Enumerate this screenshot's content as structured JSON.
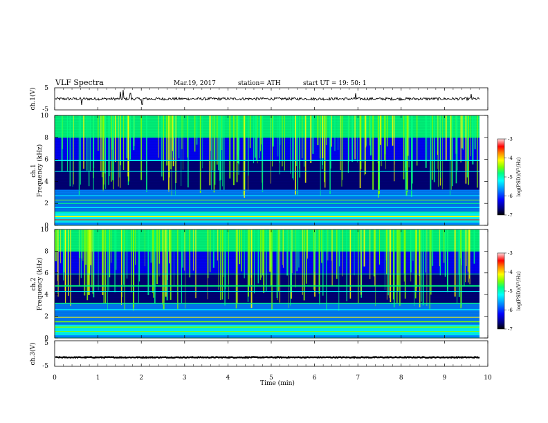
{
  "header": {
    "title": "VLF  Spectra",
    "date": "Mar.19, 2017",
    "station": "station= ATH",
    "start": "start  UT  =    19: 50: 1"
  },
  "chart_data": {
    "type": "heatmap",
    "xlabel": "Time  (min)",
    "xlim": [
      0,
      10
    ],
    "x_ticks": [
      "0",
      "1",
      "2",
      "3",
      "4",
      "5",
      "6",
      "7",
      "8",
      "9",
      "10"
    ],
    "panels": [
      {
        "name": "ch.1 waveform",
        "type": "line",
        "ylabel": "ch.1(V)",
        "ylim": [
          -5,
          5
        ],
        "y_ticks": [
          "5",
          "-5"
        ],
        "baseline": 0,
        "noise_amplitude": 0.6,
        "spikes": [
          {
            "t": 1.52,
            "v": 3.2
          },
          {
            "t": 1.58,
            "v": 4.0
          },
          {
            "t": 1.75,
            "v": 2.5
          },
          {
            "t": 0.62,
            "v": -2.8
          },
          {
            "t": 2.02,
            "v": -2.6
          },
          {
            "t": 6.95,
            "v": 2.5
          },
          {
            "t": 9.62,
            "v": 2.2
          }
        ]
      },
      {
        "name": "ch.1 spectrogram",
        "type": "heatmap",
        "ylabel_line1": "ch.1",
        "ylabel_line2": "Frequency (kHz)",
        "ylim": [
          0,
          10
        ],
        "y_ticks": [
          "0",
          "2",
          "4",
          "6",
          "8",
          "10"
        ],
        "colorbar": {
          "label": "log(PSD)(V²/Hz)",
          "range": [
            -7,
            -3
          ],
          "ticks": [
            "-3",
            "-4",
            "-5",
            "-6",
            "-7"
          ]
        }
      },
      {
        "name": "ch.2 spectrogram",
        "type": "heatmap",
        "ylabel_line1": "ch.2",
        "ylabel_line2": "Frequency (kHz)",
        "ylim": [
          0,
          10
        ],
        "y_ticks": [
          "0",
          "2",
          "4",
          "6",
          "8",
          "10"
        ],
        "colorbar": {
          "label": "log(PSD)(V²/Hz)",
          "range": [
            -7,
            -3
          ],
          "ticks": [
            "-3",
            "-4",
            "-5",
            "-6",
            "-7"
          ]
        }
      },
      {
        "name": "ch.3 waveform",
        "type": "line",
        "ylabel": "ch.3(V)",
        "ylim": [
          -5,
          5
        ],
        "y_ticks": [
          "5",
          "-5"
        ],
        "baseline": -1.5,
        "noise_amplitude": 0.15
      }
    ],
    "colormap": [
      "#000000",
      "#00007a",
      "#0000ff",
      "#0080ff",
      "#00ffff",
      "#00ff80",
      "#80ff00",
      "#ffff00",
      "#ff8000",
      "#ff0000",
      "#ffe0e0"
    ]
  }
}
